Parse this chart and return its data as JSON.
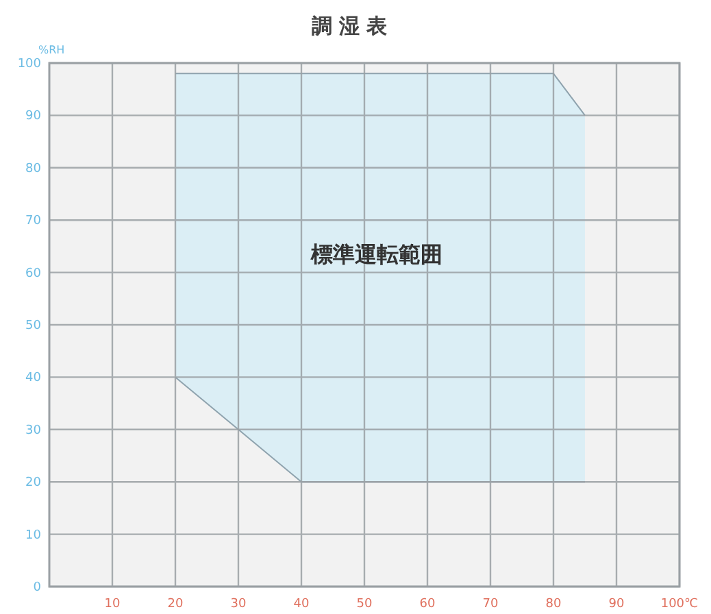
{
  "chart_data": {
    "type": "area",
    "title": "調 湿 表",
    "ylabel": "%RH",
    "xlim": [
      0,
      100
    ],
    "ylim": [
      0,
      100
    ],
    "xticks": [
      10,
      20,
      30,
      40,
      50,
      60,
      70,
      80,
      90,
      {
        "value": 100,
        "label": "100℃"
      }
    ],
    "yticks": [
      0,
      10,
      20,
      30,
      40,
      50,
      60,
      70,
      80,
      90,
      100
    ],
    "grid": true,
    "series": [
      {
        "color": "#dbeef5",
        "x": [
          20,
          30,
          40,
          80,
          85
        ],
        "values": [
          98,
          98,
          98,
          98,
          90
        ]
      },
      {
        "color": "#f2f2f2",
        "x": [
          20,
          30,
          40,
          80,
          85
        ],
        "values": [
          40,
          30,
          20,
          20,
          20
        ]
      }
    ],
    "annotations": [
      "標準運転範囲"
    ]
  }
}
